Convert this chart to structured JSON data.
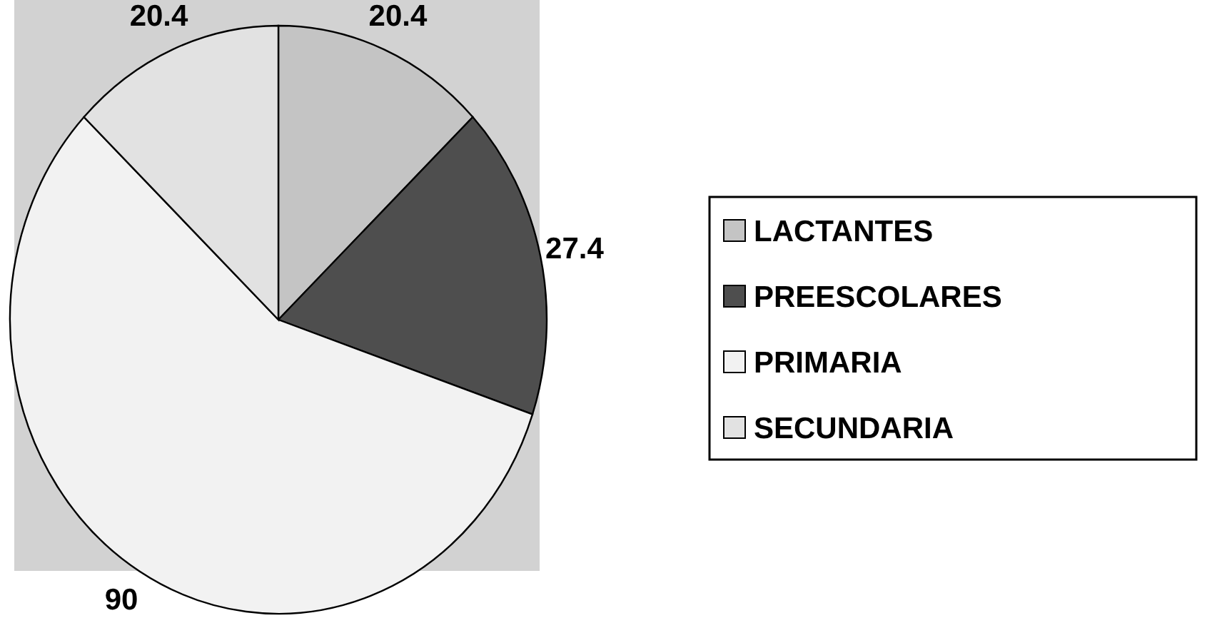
{
  "chart_data": {
    "type": "pie",
    "categories": [
      "LACTANTES",
      "PREESCOLARES",
      "PRIMARIA",
      "SECUNDARIA"
    ],
    "values": [
      20.4,
      27.4,
      90,
      20.4
    ],
    "colors": [
      "#c4c4c4",
      "#4e4e4e",
      "#f2f2f2",
      "#e2e2e2"
    ],
    "data_labels": true,
    "legend": "right"
  }
}
